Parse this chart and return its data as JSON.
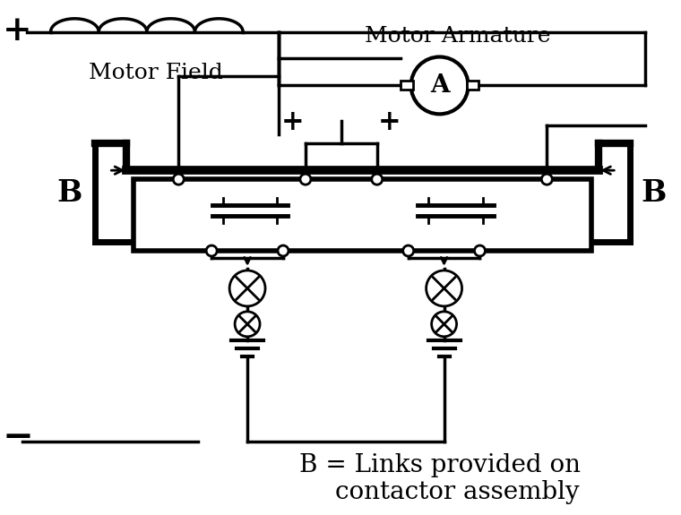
{
  "bg_color": "#ffffff",
  "lc": "#000000",
  "tlw": 4.0,
  "nlw": 2.0,
  "font_serif": "DejaVu Serif",
  "label_motor_field": "Motor Field",
  "label_motor_armature": "Motor Armature",
  "label_A": "A",
  "label_B": "B",
  "label_plus": "+",
  "label_minus": "−",
  "legend_line1": "B = Links provided on",
  "legend_line2": "contactor assembly",
  "fs_large": 18,
  "fs_med": 16,
  "fs_small": 14,
  "fs_symbol": 24,
  "fs_legend": 20
}
